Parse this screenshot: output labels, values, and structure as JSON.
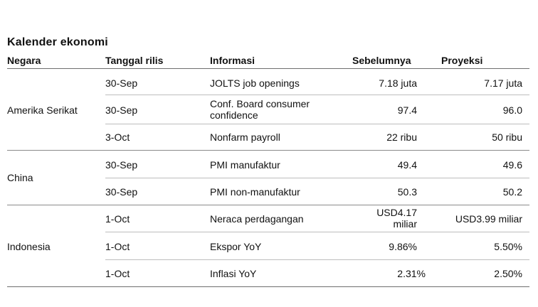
{
  "title": "Kalender ekonomi",
  "headers": {
    "country": "Negara",
    "date": "Tanggal rilis",
    "info": "Informasi",
    "previous": "Sebelumnya",
    "projection": "Proyeksi"
  },
  "groups": [
    {
      "country": "Amerika Serikat",
      "rows": [
        {
          "date": "30-Sep",
          "info": "JOLTS job openings",
          "previous": "7.18 juta",
          "projection": "7.17 juta"
        },
        {
          "date": "30-Sep",
          "info": "Conf. Board consumer confidence",
          "previous": "97.4",
          "projection": "96.0"
        },
        {
          "date": "3-Oct",
          "info": "Nonfarm payroll",
          "previous": "22 ribu",
          "projection": "50 ribu"
        }
      ]
    },
    {
      "country": "China",
      "rows": [
        {
          "date": "30-Sep",
          "info": "PMI manufaktur",
          "previous": "49.4",
          "projection": "49.6"
        },
        {
          "date": "30-Sep",
          "info": "PMI non-manufaktur",
          "previous": "50.3",
          "projection": "50.2"
        }
      ]
    },
    {
      "country": "Indonesia",
      "rows": [
        {
          "date": "1-Oct",
          "info": "Neraca perdagangan",
          "previous": "USD4.17 miliar",
          "projection": "USD3.99 miliar"
        },
        {
          "date": "1-Oct",
          "info": "Ekspor YoY",
          "previous": "9.86%",
          "projection": "5.50%"
        },
        {
          "date": "1-Oct",
          "info": "Inflasi YoY",
          "previous": "2.31%",
          "projection": "2.50%"
        }
      ]
    }
  ]
}
